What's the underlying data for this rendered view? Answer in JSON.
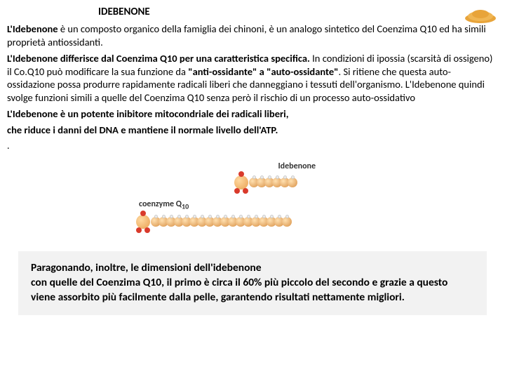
{
  "title": "IDEBENONE",
  "cornerImage": {
    "type": "orange-powder-pile",
    "color": "#e8a43a"
  },
  "paragraph": {
    "p1a": "L'Idebenone",
    "p1b": " è un composto organico della famiglia dei chinoni, è un analogo sintetico del Coenzima Q10 ed ha simili proprietà antiossidanti.",
    "p2a": "L'Idebenone differisce dal Coenzima Q10 per una caratteristica specifica.",
    "p2b": " In condizioni di ipossia (scarsità di ossigeno) il Co.Q10 può modificare la sua funzione da ",
    "p2c": "\"anti-ossidante\" a \"auto-ossidante\"",
    "p2d": ". Si ritiene che questa auto-ossidazione possa produrre rapidamente radicali liberi che danneggiano i tessuti dell'organismo. L'Idebenone quindi svolge funzioni simili a quelle del Coenzima Q10 senza però il rischio di un processo auto-ossidativo",
    "p3": "L'Idebenone è un potente inibitore mitocondriale dei radicali liberi,",
    "p4": "che riduce i danni del DNA e mantiene il normale livello dell'ATP."
  },
  "diagram": {
    "label1": "Idebenone",
    "label2": "coenzyme Q",
    "sub": "10",
    "shortChainBeads": 6,
    "longChainBeads": 18,
    "beadColor": "#d89045",
    "oxygenColor": "#d93a2b"
  },
  "footer": {
    "l1": "Paragonando, inoltre, le dimensioni dell'idebenone",
    "l2": "con quelle del Coenzima Q10, il primo è circa il 60% più piccolo del secondo e grazie a questo viene assorbito più facilmente dalla pelle, garantendo risultati nettamente migliori."
  }
}
